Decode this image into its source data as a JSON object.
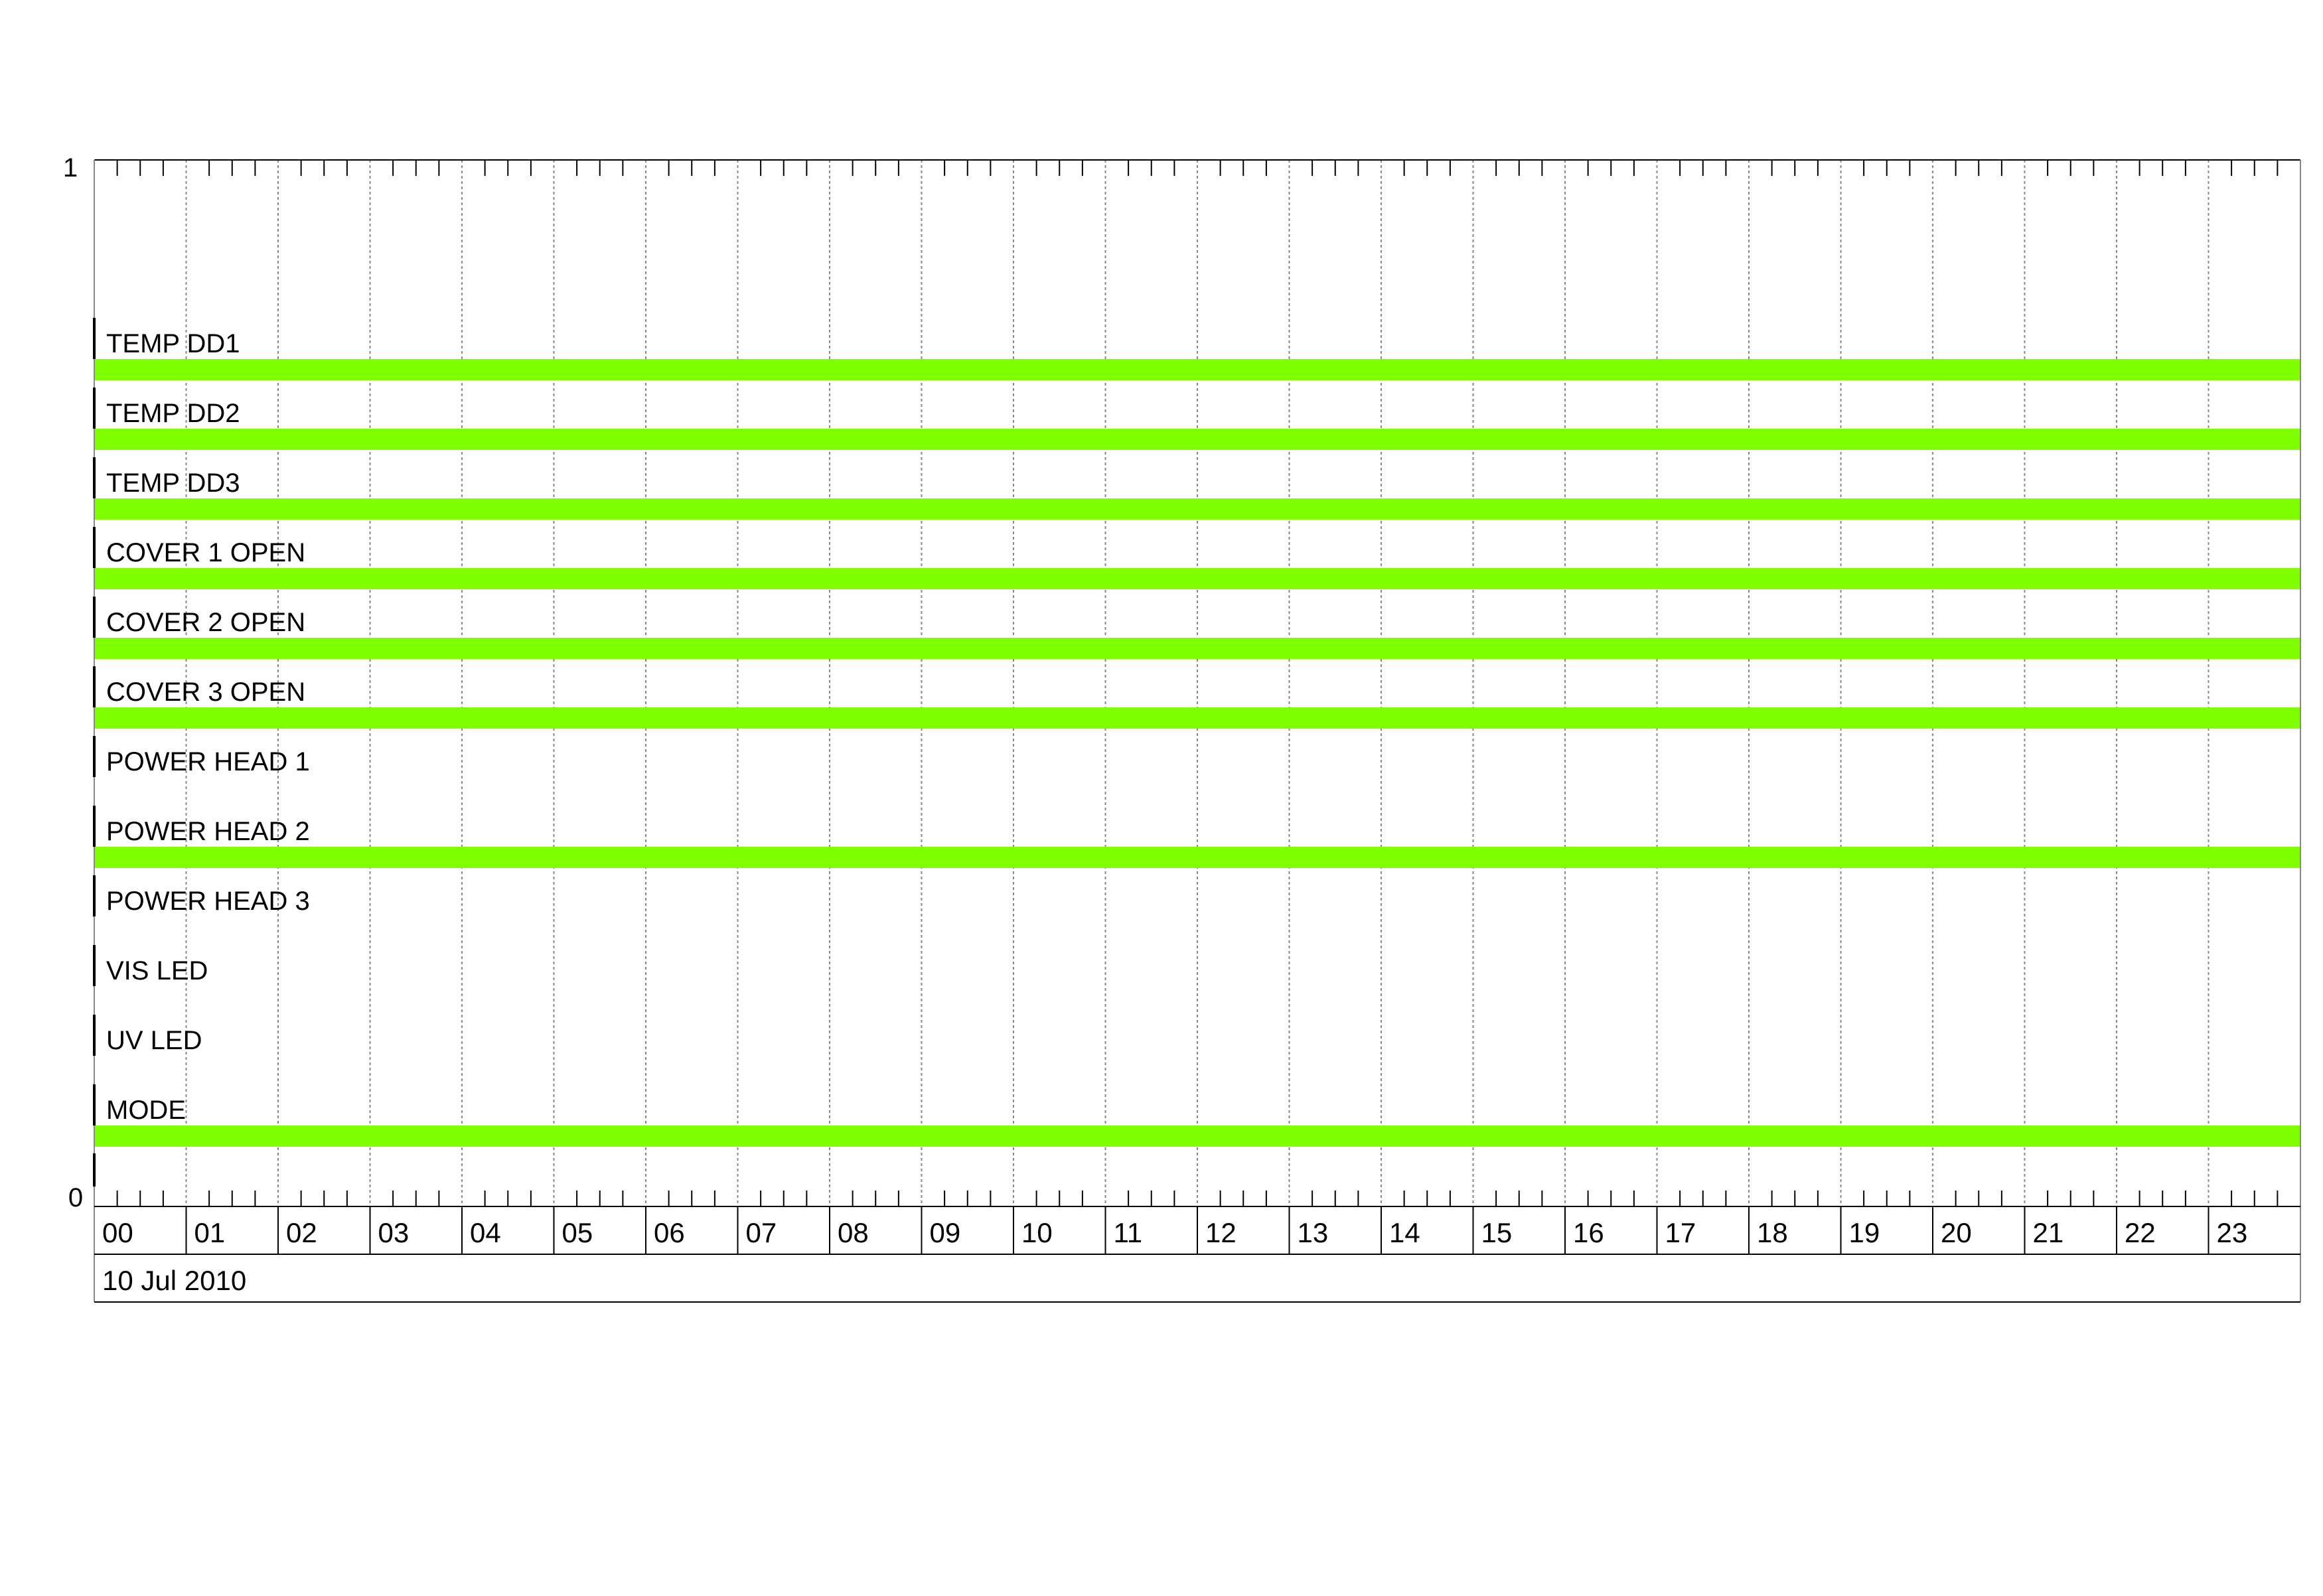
{
  "chart_data": {
    "type": "timeline",
    "ylim": [
      0,
      1
    ],
    "y_tick_labels": [
      "1",
      "0"
    ],
    "x_tick_labels": [
      "00",
      "01",
      "02",
      "03",
      "04",
      "05",
      "06",
      "07",
      "08",
      "09",
      "10",
      "11",
      "12",
      "13",
      "14",
      "15",
      "16",
      "17",
      "18",
      "19",
      "20",
      "21",
      "22",
      "23"
    ],
    "x_range_hours": [
      0,
      24
    ],
    "minor_ticks_per_hour": 4,
    "date_label": "10 Jul 2010",
    "grid": true,
    "on_color": "#80ff00",
    "series": [
      {
        "name": "TEMP DD1",
        "on": true,
        "start_hour": 0,
        "end_hour": 24
      },
      {
        "name": "TEMP DD2",
        "on": true,
        "start_hour": 0,
        "end_hour": 24
      },
      {
        "name": "TEMP DD3",
        "on": true,
        "start_hour": 0,
        "end_hour": 24
      },
      {
        "name": "COVER 1 OPEN",
        "on": true,
        "start_hour": 0,
        "end_hour": 24
      },
      {
        "name": "COVER 2 OPEN",
        "on": true,
        "start_hour": 0,
        "end_hour": 24
      },
      {
        "name": "COVER 3 OPEN",
        "on": true,
        "start_hour": 0,
        "end_hour": 24
      },
      {
        "name": "POWER HEAD 1",
        "on": false
      },
      {
        "name": "POWER HEAD 2",
        "on": true,
        "start_hour": 0,
        "end_hour": 24
      },
      {
        "name": "POWER HEAD 3",
        "on": false
      },
      {
        "name": "VIS LED",
        "on": false
      },
      {
        "name": "UV LED",
        "on": false
      },
      {
        "name": "MODE",
        "on": true,
        "start_hour": 0,
        "end_hour": 24
      }
    ]
  }
}
